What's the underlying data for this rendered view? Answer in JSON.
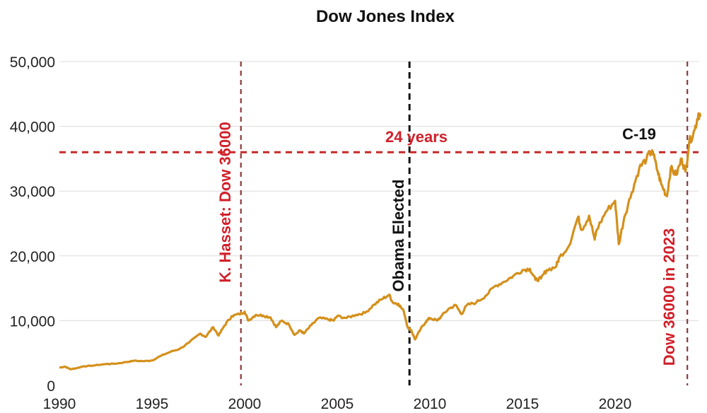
{
  "chart_data": {
    "type": "line",
    "title": "Dow Jones Index",
    "xlabel": "",
    "ylabel": "",
    "xlim": [
      1990,
      2024.6
    ],
    "ylim": [
      0,
      50000
    ],
    "x_ticks": [
      1990,
      1995,
      2000,
      2005,
      2010,
      2015,
      2020
    ],
    "x_tick_labels": [
      "1990",
      "1995",
      "2000",
      "2005",
      "2010",
      "2015",
      "2020"
    ],
    "y_ticks": [
      0,
      10000,
      20000,
      30000,
      40000,
      50000
    ],
    "y_tick_labels": [
      "0",
      "10,000",
      "20,000",
      "30,000",
      "40,000",
      "50,000"
    ],
    "grid": "horizontal",
    "legend": "none",
    "series": [
      {
        "color": "#d4901c",
        "points": [
          [
            1990.0,
            2750
          ],
          [
            1990.3,
            2900
          ],
          [
            1990.6,
            2500
          ],
          [
            1990.9,
            2650
          ],
          [
            1991.3,
            2950
          ],
          [
            1991.8,
            3050
          ],
          [
            1992.5,
            3300
          ],
          [
            1993.0,
            3350
          ],
          [
            1993.6,
            3600
          ],
          [
            1994.0,
            3800
          ],
          [
            1994.6,
            3750
          ],
          [
            1995.0,
            3850
          ],
          [
            1995.5,
            4600
          ],
          [
            1996.0,
            5200
          ],
          [
            1996.5,
            5650
          ],
          [
            1997.0,
            6600
          ],
          [
            1997.6,
            8000
          ],
          [
            1997.9,
            7500
          ],
          [
            1998.3,
            9000
          ],
          [
            1998.6,
            7700
          ],
          [
            1998.9,
            9200
          ],
          [
            1999.3,
            10700
          ],
          [
            1999.7,
            11000
          ],
          [
            2000.0,
            11400
          ],
          [
            2000.2,
            10000
          ],
          [
            2000.6,
            10900
          ],
          [
            2001.0,
            10800
          ],
          [
            2001.4,
            10500
          ],
          [
            2001.7,
            9000
          ],
          [
            2002.0,
            10000
          ],
          [
            2002.4,
            9400
          ],
          [
            2002.7,
            7800
          ],
          [
            2003.0,
            8500
          ],
          [
            2003.2,
            8000
          ],
          [
            2003.6,
            9300
          ],
          [
            2004.0,
            10400
          ],
          [
            2004.5,
            10200
          ],
          [
            2004.8,
            10000
          ],
          [
            2005.0,
            10700
          ],
          [
            2005.5,
            10400
          ],
          [
            2006.0,
            10900
          ],
          [
            2006.5,
            11200
          ],
          [
            2007.0,
            12500
          ],
          [
            2007.4,
            13300
          ],
          [
            2007.8,
            14000
          ],
          [
            2008.0,
            12800
          ],
          [
            2008.3,
            12600
          ],
          [
            2008.6,
            11400
          ],
          [
            2008.8,
            9000
          ],
          [
            2009.0,
            8500
          ],
          [
            2009.2,
            7100
          ],
          [
            2009.5,
            8700
          ],
          [
            2009.8,
            9900
          ],
          [
            2010.0,
            10400
          ],
          [
            2010.4,
            10000
          ],
          [
            2010.6,
            10600
          ],
          [
            2011.0,
            11800
          ],
          [
            2011.4,
            12400
          ],
          [
            2011.7,
            11000
          ],
          [
            2012.0,
            12400
          ],
          [
            2012.5,
            12800
          ],
          [
            2013.0,
            13800
          ],
          [
            2013.5,
            15300
          ],
          [
            2014.0,
            16000
          ],
          [
            2014.5,
            16900
          ],
          [
            2015.0,
            17800
          ],
          [
            2015.4,
            18000
          ],
          [
            2015.7,
            16300
          ],
          [
            2016.0,
            16500
          ],
          [
            2016.3,
            17800
          ],
          [
            2016.8,
            18300
          ],
          [
            2017.0,
            19800
          ],
          [
            2017.5,
            21500
          ],
          [
            2018.0,
            26000
          ],
          [
            2018.2,
            24000
          ],
          [
            2018.6,
            26200
          ],
          [
            2018.9,
            22500
          ],
          [
            2019.0,
            24000
          ],
          [
            2019.5,
            26800
          ],
          [
            2020.0,
            28500
          ],
          [
            2020.2,
            21800
          ],
          [
            2020.5,
            26000
          ],
          [
            2020.9,
            29800
          ],
          [
            2021.3,
            33500
          ],
          [
            2021.7,
            35000
          ],
          [
            2022.0,
            36300
          ],
          [
            2022.3,
            33000
          ],
          [
            2022.5,
            31000
          ],
          [
            2022.8,
            29200
          ],
          [
            2023.0,
            33500
          ],
          [
            2023.3,
            32500
          ],
          [
            2023.6,
            35000
          ],
          [
            2023.8,
            33000
          ],
          [
            2024.0,
            37500
          ],
          [
            2024.3,
            39500
          ],
          [
            2024.5,
            42000
          ],
          [
            2024.6,
            41500
          ]
        ]
      }
    ],
    "reference_lines": [
      {
        "orientation": "vertical",
        "x": 1999.8,
        "color": "#8b3a3a",
        "style": "dashed"
      },
      {
        "orientation": "vertical",
        "x": 2008.9,
        "color": "#111111",
        "style": "dashed"
      },
      {
        "orientation": "vertical",
        "x": 2023.9,
        "color": "#8b3a3a",
        "style": "dashed"
      },
      {
        "orientation": "horizontal",
        "y": 36000,
        "color": "#c62828",
        "style": "dashed"
      }
    ],
    "annotations": {
      "hasset": "K. Hasset: Dow 36000",
      "obama": "Obama Elected",
      "years24": "24 years",
      "c19": "C-19",
      "dow2023": "Dow 36000 in 2023"
    }
  }
}
